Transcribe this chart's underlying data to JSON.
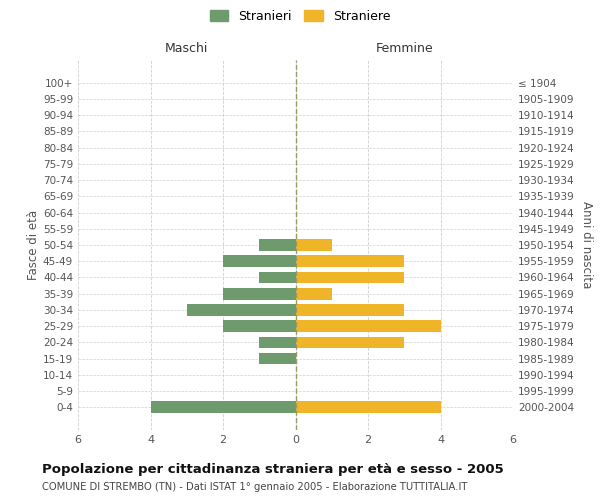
{
  "age_groups": [
    "100+",
    "95-99",
    "90-94",
    "85-89",
    "80-84",
    "75-79",
    "70-74",
    "65-69",
    "60-64",
    "55-59",
    "50-54",
    "45-49",
    "40-44",
    "35-39",
    "30-34",
    "25-29",
    "20-24",
    "15-19",
    "10-14",
    "5-9",
    "0-4"
  ],
  "birth_years": [
    "≤ 1904",
    "1905-1909",
    "1910-1914",
    "1915-1919",
    "1920-1924",
    "1925-1929",
    "1930-1934",
    "1935-1939",
    "1940-1944",
    "1945-1949",
    "1950-1954",
    "1955-1959",
    "1960-1964",
    "1965-1969",
    "1970-1974",
    "1975-1979",
    "1980-1984",
    "1985-1989",
    "1990-1994",
    "1995-1999",
    "2000-2004"
  ],
  "males": [
    0,
    0,
    0,
    0,
    0,
    0,
    0,
    0,
    0,
    0,
    1,
    2,
    1,
    2,
    3,
    2,
    1,
    1,
    0,
    0,
    4
  ],
  "females": [
    0,
    0,
    0,
    0,
    0,
    0,
    0,
    0,
    0,
    0,
    1,
    3,
    3,
    1,
    3,
    4,
    3,
    0,
    0,
    0,
    4
  ],
  "male_color": "#6d9b6d",
  "female_color": "#f0b429",
  "xlim": 6,
  "label_maschi": "Maschi",
  "label_femmine": "Femmine",
  "title": "Popolazione per cittadinanza straniera per età e sesso - 2005",
  "subtitle": "COMUNE DI STREMBO (TN) - Dati ISTAT 1° gennaio 2005 - Elaborazione TUTTITALIA.IT",
  "ylabel_left": "Fasce di età",
  "ylabel_right": "Anni di nascita",
  "legend_male": "Stranieri",
  "legend_female": "Straniere",
  "background_color": "#ffffff",
  "grid_color": "#d0d0d0",
  "centerline_color": "#999966"
}
